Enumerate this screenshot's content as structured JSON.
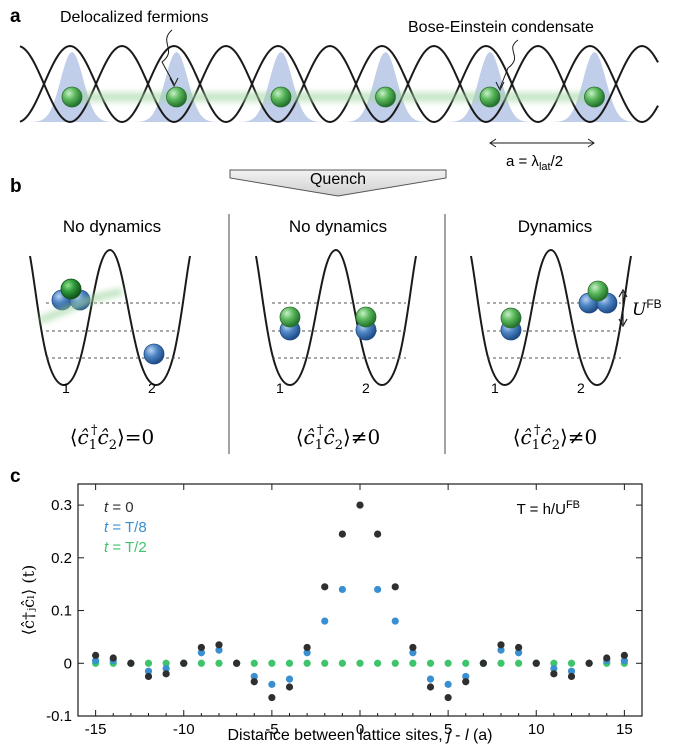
{
  "panel_a": {
    "letter": "a",
    "fermions_label": "Delocalized fermions",
    "bec_label": "Bose-Einstein condensate",
    "spacing_a": "a = λ",
    "spacing_sub": "lat",
    "spacing_tail": "/2"
  },
  "panel_b": {
    "letter": "b",
    "quench_label": "Quench",
    "columns": [
      {
        "title": "No dynamics",
        "site1": "1",
        "site2": "2",
        "corr_rel": "=0"
      },
      {
        "title": "No dynamics",
        "site1": "1",
        "site2": "2",
        "corr_rel": "≠0"
      },
      {
        "title": "Dynamics",
        "site1": "1",
        "site2": "2",
        "corr_rel": "≠0"
      }
    ],
    "corr_c": "c",
    "corr_hat": "^",
    "corr_dagger": "†",
    "corr_idx1": "1",
    "corr_idx2": "2",
    "u_label": "U",
    "u_sup": "FB"
  },
  "panel_c": {
    "letter": "c",
    "period_label": "T = h/U",
    "period_sup": "FB",
    "ylabel": "⟨ĉ†ⱼĉₗ⟩ (t)",
    "xlabel_text": "Distance between lattice sites, ",
    "xlabel_j": "j",
    "xlabel_dash": " - ",
    "xlabel_l": "l",
    "xlabel_unit": " (a)"
  },
  "chart_data": {
    "type": "scatter",
    "xlabel": "Distance between lattice sites, j - l (a)",
    "ylabel": "⟨ĉ†ⱼĉₗ⟩ (t)",
    "xlim": [
      -16,
      16
    ],
    "ylim": [
      -0.1,
      0.34
    ],
    "xticks": [
      -15,
      -10,
      -5,
      0,
      5,
      10,
      15
    ],
    "yticks": [
      -0.1,
      0,
      0.1,
      0.2,
      0.3
    ],
    "ytick_labels": [
      "-0.1",
      "0",
      "0.1",
      "0.2",
      "0.3"
    ],
    "x": [
      -15,
      -14,
      -13,
      -12,
      -11,
      -10,
      -9,
      -8,
      -7,
      -6,
      -5,
      -4,
      -3,
      -2,
      -1,
      0,
      1,
      2,
      3,
      4,
      5,
      6,
      7,
      8,
      9,
      10,
      11,
      12,
      13,
      14,
      15
    ],
    "series": [
      {
        "name": "t = 0",
        "color": "#2f2f2f",
        "values": [
          0.015,
          0.01,
          0,
          -0.025,
          -0.02,
          0,
          0.03,
          0.035,
          0,
          -0.035,
          -0.065,
          -0.045,
          0.03,
          0.145,
          0.245,
          0.3,
          0.245,
          0.145,
          0.03,
          -0.045,
          -0.065,
          -0.035,
          0,
          0.035,
          0.03,
          0,
          -0.02,
          -0.025,
          0,
          0.01,
          0.015
        ]
      },
      {
        "name": "t = T/8",
        "color": "#3a8fd0",
        "values": [
          0.005,
          0.005,
          0,
          -0.015,
          -0.01,
          0,
          0.02,
          0.025,
          0,
          -0.025,
          -0.04,
          -0.03,
          0.02,
          0.08,
          0.14,
          0,
          0.14,
          0.08,
          0.02,
          -0.03,
          -0.04,
          -0.025,
          0,
          0.025,
          0.02,
          0,
          -0.01,
          -0.015,
          0,
          0.005,
          0.005
        ]
      },
      {
        "name": "t = T/2",
        "color": "#3ec46a",
        "values": [
          0,
          0,
          0,
          0,
          0,
          0,
          0,
          0,
          0,
          0,
          0,
          0,
          0,
          0,
          0,
          0,
          0,
          0,
          0,
          0,
          0,
          0,
          0,
          0,
          0,
          0,
          0,
          0,
          0,
          0,
          0
        ]
      }
    ],
    "legend_placement": "top-left",
    "grid": false
  },
  "colors": {
    "green": "#4fa84f",
    "blue": "#3f72b5",
    "bec_fill": "#b5c6e6",
    "glow": "#9fd49f",
    "line": "#1a1a1a"
  }
}
